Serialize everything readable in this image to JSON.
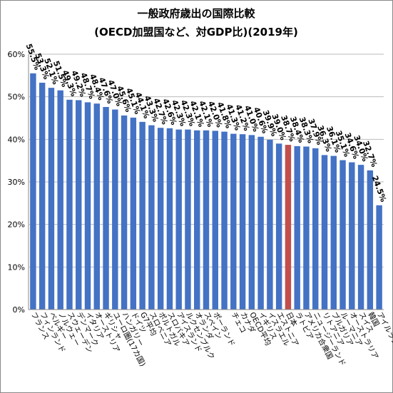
{
  "chart_data": {
    "type": "bar",
    "title": "一般政府歳出の国際比較",
    "subtitle": "(OECD加盟国など、対GDP比)(2019年)",
    "categories": [
      "フランス",
      "フィンランド",
      "ベルギー",
      "ノルウェー",
      "スウェーデン",
      "デンマーク",
      "イタリア",
      "オーストリア",
      "ギリシャ",
      "ユーロ圏(17カ国)",
      "ハンガリー",
      "ドイツ",
      "G7平均",
      "スロベニア",
      "ポルトガル",
      "スロバキア",
      "アイスランド",
      "ルクセンブルク",
      "オランダ",
      "スペイン",
      "ポーランド",
      null,
      "チェコ",
      "カナダ",
      "OECD平均",
      "イギリス",
      "イスラエル",
      "エストニア",
      "日本",
      "ラトビア",
      "アメリカ合衆国",
      "ニュージーランド",
      "リトアニア",
      "ブルガリア",
      "ルーマニア",
      "オーストラリア",
      "スイス",
      "韓国",
      "アイルランド"
    ],
    "values": [
      55.5,
      53.3,
      52.1,
      51.5,
      49.3,
      49.2,
      48.7,
      48.4,
      47.6,
      47.0,
      45.6,
      45.1,
      44.1,
      43.3,
      42.7,
      42.6,
      42.3,
      42.3,
      42.1,
      42.1,
      42.0,
      41.8,
      41.3,
      41.2,
      41.0,
      40.6,
      39.9,
      39.0,
      38.7,
      38.4,
      38.3,
      37.9,
      36.3,
      36.1,
      35.1,
      34.6,
      34.0,
      32.7,
      24.5
    ],
    "value_labels": [
      "55.5%",
      "53.3%",
      "52.1%",
      "51.5%",
      "49.3%",
      "49.2%",
      "48.7%",
      "48.4%",
      "47.6%",
      "47.0%",
      "45.6%",
      "45.1%",
      "44.1%",
      "43.3%",
      "42.7%",
      "42.6%",
      "42.3%",
      "42.3%",
      "42.1%",
      "42.1%",
      "42.0%",
      "41.8%",
      "41.3%",
      "41.2%",
      "41.0%",
      "40.6%",
      "39.9%",
      "39.0%",
      "38.7%",
      "38.4%",
      "38.3%",
      "37.9%",
      "36.3%",
      "36.1%",
      "35.1%",
      "34.6%",
      "34.0%",
      "32.7%",
      "24.5%"
    ],
    "color": "#4472c4",
    "highlight_color": "#c0504d",
    "highlight": "日本",
    "ylim": [
      0,
      60
    ],
    "yticks": [
      {
        "value": 0,
        "label": "0%"
      },
      {
        "value": 10,
        "label": "10%"
      },
      {
        "value": 20,
        "label": "20%"
      },
      {
        "value": 30,
        "label": "30%"
      },
      {
        "value": 40,
        "label": "40%"
      },
      {
        "value": 50,
        "label": "50%"
      },
      {
        "value": 60,
        "label": "60%"
      }
    ],
    "grid": true
  }
}
